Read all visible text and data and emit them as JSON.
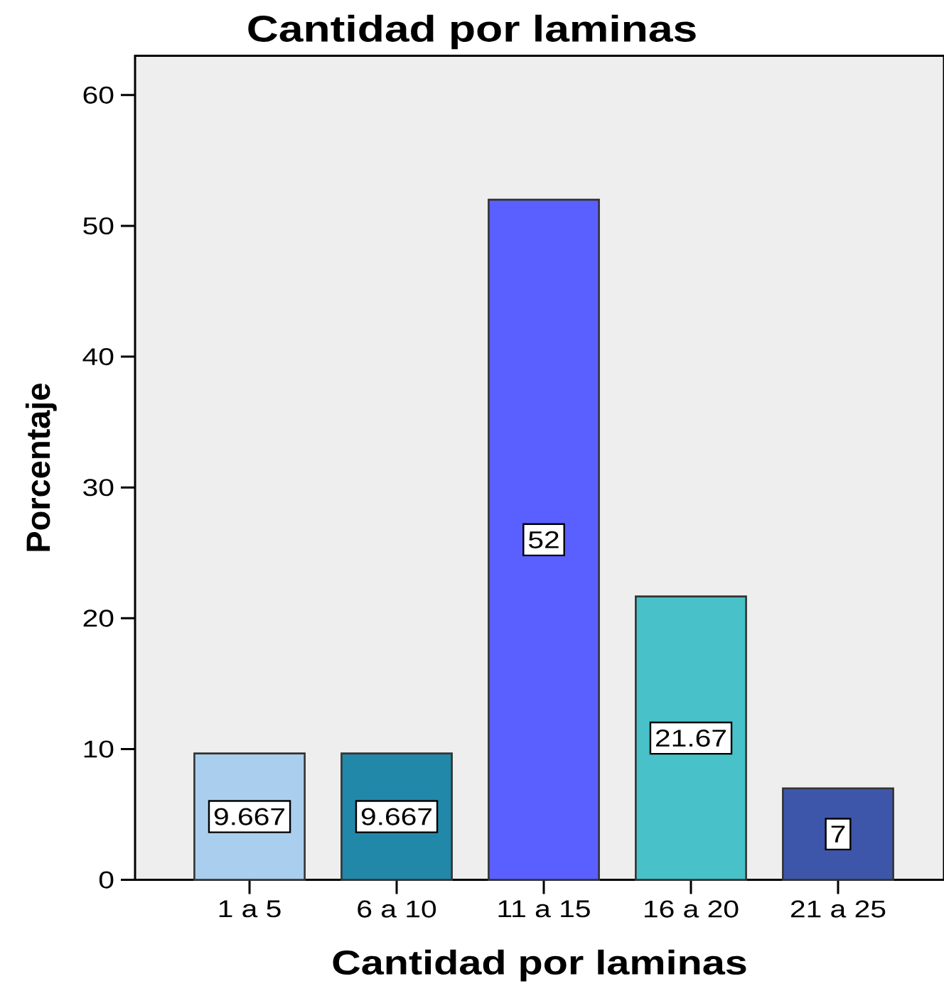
{
  "chart_data": {
    "type": "bar",
    "title": "Cantidad por laminas",
    "xlabel": "Cantidad por laminas",
    "ylabel": "Porcentaje",
    "categories": [
      "1 a 5",
      "6 a 10",
      "11 a 15",
      "16 a 20",
      "21 a 25"
    ],
    "values": [
      9.667,
      9.667,
      52,
      21.67,
      7
    ],
    "colors": [
      "#aacfee",
      "#2288aa",
      "#5a5fff",
      "#48c2c8",
      "#3d56aa"
    ],
    "ylim": [
      0,
      63
    ],
    "yticks": [
      0,
      10,
      20,
      30,
      40,
      50,
      60
    ],
    "data_labels": true
  }
}
